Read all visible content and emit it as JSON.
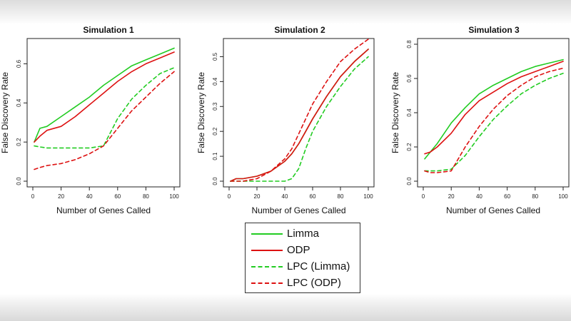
{
  "colors": {
    "limma": "#22cc22",
    "odp": "#dd1111"
  },
  "legend": {
    "items": [
      {
        "label": "Limma",
        "color": "#22cc22",
        "style": "solid"
      },
      {
        "label": "ODP",
        "color": "#dd1111",
        "style": "solid"
      },
      {
        "label": "LPC (Limma)",
        "color": "#22cc22",
        "style": "dashed"
      },
      {
        "label": "LPC (ODP)",
        "color": "#dd1111",
        "style": "dashed"
      }
    ]
  },
  "chart_data": [
    {
      "type": "line",
      "title": "Simulation 1",
      "xlabel": "Number of Genes Called",
      "ylabel": "False Discovery Rate",
      "xlim": [
        0,
        100
      ],
      "ylim": [
        0,
        0.7
      ],
      "xticks": [
        0,
        20,
        40,
        60,
        80,
        100
      ],
      "yticks": [
        0,
        0.2,
        0.4,
        0.6
      ],
      "ytick_labels": [
        "0.0",
        "0.2",
        "0.4",
        "0.6"
      ],
      "x": [
        1,
        5,
        10,
        20,
        30,
        40,
        50,
        60,
        70,
        80,
        90,
        100
      ],
      "series": [
        {
          "name": "Limma",
          "style": "solid",
          "color": "#22cc22",
          "values": [
            0.2,
            0.27,
            0.28,
            0.33,
            0.38,
            0.43,
            0.49,
            0.54,
            0.59,
            0.62,
            0.65,
            0.68
          ]
        },
        {
          "name": "ODP",
          "style": "solid",
          "color": "#dd1111",
          "values": [
            0.2,
            0.23,
            0.26,
            0.28,
            0.33,
            0.39,
            0.45,
            0.51,
            0.56,
            0.6,
            0.63,
            0.66
          ]
        },
        {
          "name": "LPC (Limma)",
          "style": "dashed",
          "color": "#22cc22",
          "values": [
            0.18,
            0.175,
            0.17,
            0.17,
            0.17,
            0.17,
            0.18,
            0.32,
            0.42,
            0.49,
            0.55,
            0.58
          ]
        },
        {
          "name": "LPC (ODP)",
          "style": "dashed",
          "color": "#dd1111",
          "values": [
            0.06,
            0.07,
            0.08,
            0.09,
            0.11,
            0.14,
            0.18,
            0.27,
            0.36,
            0.43,
            0.5,
            0.56
          ]
        }
      ],
      "grid": false
    },
    {
      "type": "line",
      "title": "Simulation 2",
      "xlabel": "Number of Genes Called",
      "ylabel": "False Discovery Rate",
      "xlim": [
        0,
        100
      ],
      "ylim": [
        0,
        0.55
      ],
      "xticks": [
        0,
        20,
        40,
        60,
        80,
        100
      ],
      "yticks": [
        0,
        0.1,
        0.2,
        0.3,
        0.4,
        0.5
      ],
      "ytick_labels": [
        "0.0",
        "0.1",
        "0.2",
        "0.3",
        "0.4",
        "0.5"
      ],
      "x": [
        1,
        5,
        10,
        20,
        30,
        40,
        45,
        50,
        55,
        60,
        70,
        80,
        90,
        100
      ],
      "series": [
        {
          "name": "Limma",
          "style": "solid",
          "color": "#22cc22",
          "values": [
            0.0,
            0.01,
            0.01,
            0.02,
            0.04,
            0.08,
            0.11,
            0.15,
            0.2,
            0.25,
            0.34,
            0.42,
            0.48,
            0.53
          ]
        },
        {
          "name": "ODP",
          "style": "solid",
          "color": "#dd1111",
          "values": [
            0.0,
            0.01,
            0.01,
            0.02,
            0.04,
            0.08,
            0.11,
            0.15,
            0.2,
            0.25,
            0.34,
            0.42,
            0.48,
            0.53
          ]
        },
        {
          "name": "LPC (Limma)",
          "style": "dashed",
          "color": "#22cc22",
          "values": [
            0.0,
            0.0,
            0.0,
            0.0,
            0.0,
            0.0,
            0.01,
            0.05,
            0.13,
            0.2,
            0.3,
            0.38,
            0.45,
            0.5
          ]
        },
        {
          "name": "LPC (ODP)",
          "style": "dashed",
          "color": "#dd1111",
          "values": [
            0.0,
            0.0,
            0.0,
            0.01,
            0.04,
            0.09,
            0.13,
            0.19,
            0.25,
            0.31,
            0.4,
            0.48,
            0.53,
            0.57
          ]
        }
      ],
      "grid": false
    },
    {
      "type": "line",
      "title": "Simulation 3",
      "xlabel": "Number of Genes Called",
      "ylabel": "False Discovery Rate",
      "xlim": [
        0,
        100
      ],
      "ylim": [
        0,
        0.8
      ],
      "xticks": [
        0,
        20,
        40,
        60,
        80,
        100
      ],
      "yticks": [
        0,
        0.2,
        0.4,
        0.6,
        0.8
      ],
      "ytick_labels": [
        "0.0",
        "0.2",
        "0.4",
        "0.6",
        "0.8"
      ],
      "x": [
        1,
        5,
        10,
        20,
        30,
        40,
        50,
        60,
        70,
        80,
        90,
        100
      ],
      "series": [
        {
          "name": "Limma",
          "style": "solid",
          "color": "#22cc22",
          "values": [
            0.13,
            0.17,
            0.22,
            0.34,
            0.43,
            0.51,
            0.56,
            0.6,
            0.64,
            0.67,
            0.69,
            0.71
          ]
        },
        {
          "name": "ODP",
          "style": "solid",
          "color": "#dd1111",
          "values": [
            0.16,
            0.17,
            0.2,
            0.28,
            0.39,
            0.47,
            0.52,
            0.57,
            0.61,
            0.64,
            0.67,
            0.7
          ]
        },
        {
          "name": "LPC (Limma)",
          "style": "dashed",
          "color": "#22cc22",
          "values": [
            0.06,
            0.06,
            0.06,
            0.07,
            0.15,
            0.26,
            0.36,
            0.44,
            0.51,
            0.56,
            0.6,
            0.63
          ]
        },
        {
          "name": "LPC (ODP)",
          "style": "dashed",
          "color": "#dd1111",
          "values": [
            0.06,
            0.05,
            0.05,
            0.06,
            0.2,
            0.32,
            0.42,
            0.5,
            0.56,
            0.61,
            0.64,
            0.66
          ]
        }
      ],
      "grid": false
    }
  ]
}
